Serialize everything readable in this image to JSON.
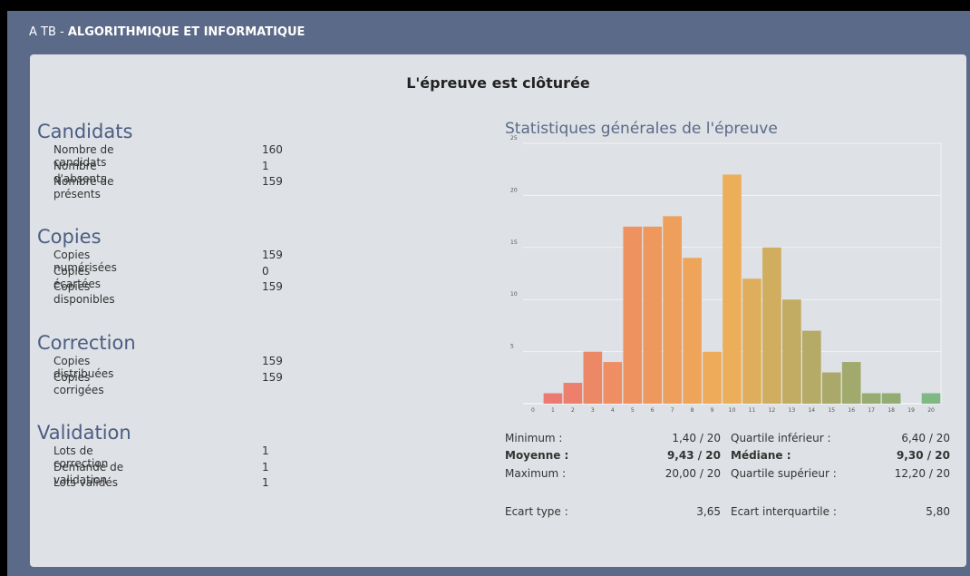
{
  "header": {
    "prefix": "A TB -",
    "title": "ALGORITHMIQUE ET INFORMATIQUE"
  },
  "status": "L'épreuve est clôturée",
  "sections": [
    {
      "title": "Candidats",
      "rows": [
        [
          "Nombre de candidats",
          "160"
        ],
        [
          "Nombre d'absents",
          "1"
        ],
        [
          "Nombre de présents",
          "159"
        ]
      ]
    },
    {
      "title": "Copies",
      "rows": [
        [
          "Copies numérisées",
          "159"
        ],
        [
          "Copies écartées",
          "0"
        ],
        [
          "Copies disponibles",
          "159"
        ]
      ]
    },
    {
      "title": "Correction",
      "rows": [
        [
          "Copies distribuées",
          "159"
        ],
        [
          "Copies corrigées",
          "159"
        ]
      ]
    },
    {
      "title": "Validation",
      "rows": [
        [
          "Lots de correction",
          "1"
        ],
        [
          "Demande de validation",
          "1"
        ],
        [
          "Lots validés",
          "1"
        ]
      ]
    }
  ],
  "chart_data": {
    "type": "bar",
    "title": "Statistiques générales de l'épreuve",
    "categories": [
      "0",
      "1",
      "2",
      "3",
      "4",
      "5",
      "6",
      "7",
      "8",
      "9",
      "10",
      "11",
      "12",
      "13",
      "14",
      "15",
      "16",
      "17",
      "18",
      "19",
      "20"
    ],
    "values": [
      0,
      1,
      2,
      5,
      4,
      17,
      17,
      18,
      14,
      5,
      22,
      12,
      15,
      10,
      7,
      3,
      4,
      1,
      1,
      0,
      1
    ],
    "colors": [
      "#ec7a72",
      "#ec7a72",
      "#ed806c",
      "#ed8866",
      "#ee8e62",
      "#ee935f",
      "#ee985d",
      "#ee9f5b",
      "#eea55a",
      "#eeab5a",
      "#edae5a",
      "#dfae5c",
      "#d0ad5f",
      "#c2ab62",
      "#b5aa66",
      "#aaa969",
      "#a1aa6c",
      "#98ab70",
      "#92ad73",
      "#8aaf76",
      "#7fb884"
    ],
    "ylim": [
      0,
      25
    ],
    "yticks": [
      5,
      10,
      15,
      20,
      25
    ],
    "grid": true
  },
  "stats": {
    "rows": [
      {
        "cells": [
          "Minimum :",
          "1,40 / 20",
          "Quartile inférieur :",
          "6,40 / 20"
        ],
        "bold": false
      },
      {
        "cells": [
          "Moyenne :",
          "9,43 / 20",
          "Médiane :",
          "9,30 / 20"
        ],
        "bold": true
      },
      {
        "cells": [
          "Maximum :",
          "20,00 / 20",
          "Quartile supérieur :",
          "12,20 / 20"
        ],
        "bold": false
      },
      {
        "cells": [
          "Ecart type :",
          "3,65",
          "Ecart interquartile :",
          "5,80"
        ],
        "bold": false
      }
    ]
  }
}
